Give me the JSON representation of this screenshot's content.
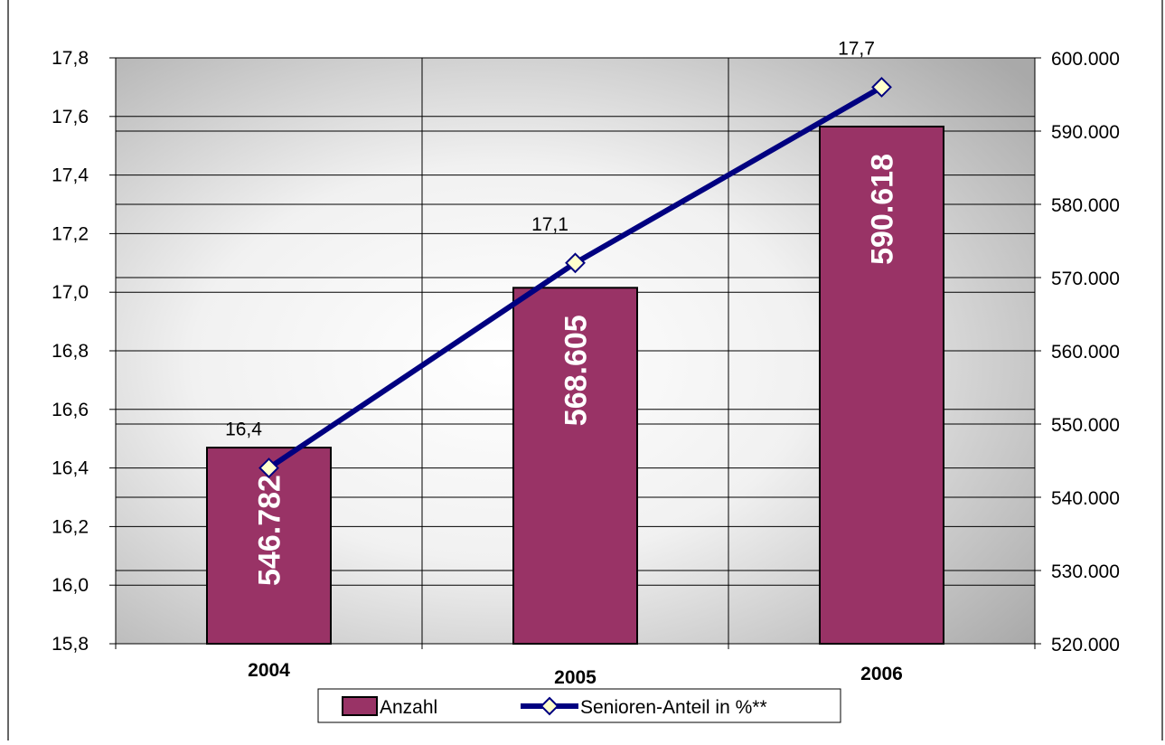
{
  "chart_data": {
    "type": "bar",
    "categories": [
      "2004",
      "2005",
      "2006"
    ],
    "series": [
      {
        "name": "Anzahl",
        "type": "bar",
        "axis": "right",
        "values": [
          546782,
          568605,
          590618
        ],
        "labels": [
          "546.782",
          "568.605",
          "590.618"
        ],
        "color": "#993366"
      },
      {
        "name": "Senioren-Anteil in %**",
        "type": "line",
        "axis": "left",
        "values": [
          16.4,
          17.1,
          17.7
        ],
        "labels": [
          "16,4",
          "17,1",
          "17,7"
        ],
        "color": "#000080",
        "marker_color": "#FFFFCC"
      }
    ],
    "left_axis": {
      "ylim": [
        15.8,
        17.8
      ],
      "ticks": [
        15.8,
        16.0,
        16.2,
        16.4,
        16.6,
        16.8,
        17.0,
        17.2,
        17.4,
        17.6,
        17.8
      ],
      "tick_labels": [
        "15,8",
        "16,0",
        "16,2",
        "16,4",
        "16,6",
        "16,8",
        "17,0",
        "17,2",
        "17,4",
        "17,6",
        "17,8"
      ]
    },
    "right_axis": {
      "ylim": [
        520000,
        600000
      ],
      "ticks": [
        520000,
        530000,
        540000,
        550000,
        560000,
        570000,
        580000,
        590000,
        600000
      ],
      "tick_labels": [
        "520.000",
        "530.000",
        "540.000",
        "550.000",
        "560.000",
        "570.000",
        "580.000",
        "590.000",
        "600.000"
      ]
    },
    "grid": true,
    "legend": "bottom"
  }
}
